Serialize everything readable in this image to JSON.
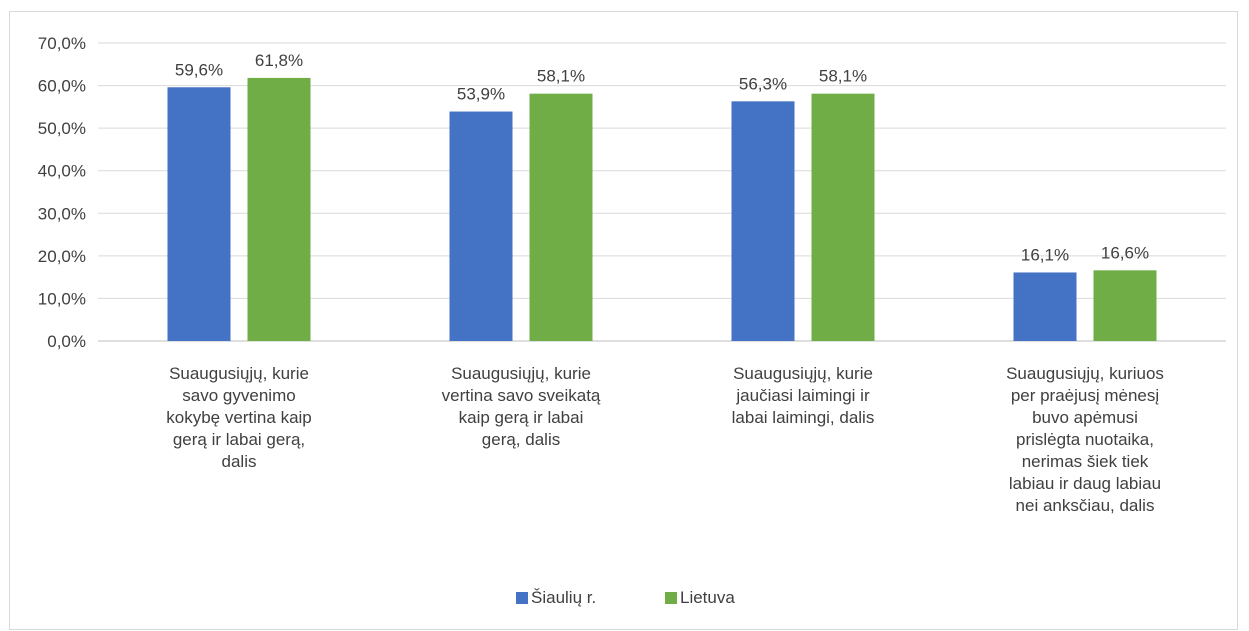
{
  "chart_data": {
    "type": "bar",
    "categories": [
      [
        "Suaugusiųjų, kurie",
        "savo gyvenimo",
        "kokybę vertina kaip",
        "gerą ir labai gerą,",
        "dalis"
      ],
      [
        "Suaugusiųjų, kurie",
        "vertina savo sveikatą",
        "kaip gerą ir labai",
        "gerą, dalis"
      ],
      [
        "Suaugusiųjų, kurie",
        "jaučiasi laimingi ir",
        "labai laimingi, dalis"
      ],
      [
        "Suaugusiųjų, kuriuos",
        "per praėjusį mėnesį",
        "buvo apėmusi",
        "prislėgta nuotaika,",
        "nerimas šiek tiek",
        "labiau ir daug labiau",
        "nei anksčiau, dalis"
      ]
    ],
    "series": [
      {
        "name": "Šiaulių r.",
        "color": "#4472c4",
        "values": [
          59.6,
          53.9,
          56.3,
          16.1
        ],
        "labels": [
          "59,6%",
          "53,9%",
          "56,3%",
          "16,1%"
        ]
      },
      {
        "name": "Lietuva",
        "color": "#70ad47",
        "values": [
          61.8,
          58.1,
          58.1,
          16.6
        ],
        "labels": [
          "61,8%",
          "58,1%",
          "58,1%",
          "16,6%"
        ]
      }
    ],
    "ylim": [
      0,
      70
    ],
    "yticks": [
      "0,0%",
      "10,0%",
      "20,0%",
      "30,0%",
      "40,0%",
      "50,0%",
      "60,0%",
      "70,0%"
    ],
    "grid": true,
    "legend_position": "bottom",
    "title": "",
    "xlabel": "",
    "ylabel": ""
  }
}
